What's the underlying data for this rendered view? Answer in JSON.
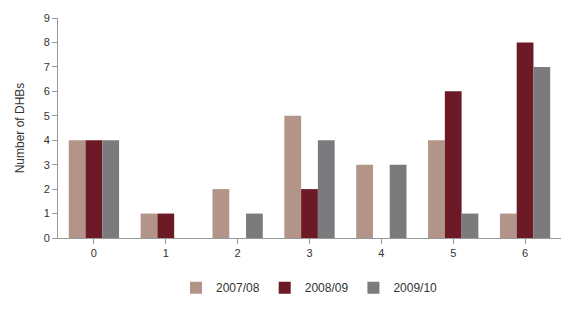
{
  "chart_data": {
    "type": "bar",
    "y_label": "Number of DHBs",
    "categories": [
      "0",
      "1",
      "2",
      "3",
      "4",
      "5",
      "6"
    ],
    "series": [
      {
        "name": "2007/08",
        "color": "#b39488",
        "values": [
          4,
          1,
          2,
          5,
          3,
          4,
          1
        ]
      },
      {
        "name": "2008/09",
        "color": "#6b1a26",
        "values": [
          4,
          1,
          0,
          2,
          0,
          6,
          8
        ]
      },
      {
        "name": "2009/10",
        "color": "#7b7b7d",
        "values": [
          4,
          0,
          1,
          4,
          3,
          1,
          7
        ]
      }
    ],
    "ylim": [
      0,
      9
    ],
    "yticks": [
      0,
      1,
      2,
      3,
      4,
      5,
      6,
      7,
      8,
      9
    ],
    "grid": false,
    "legend": "bottom"
  }
}
